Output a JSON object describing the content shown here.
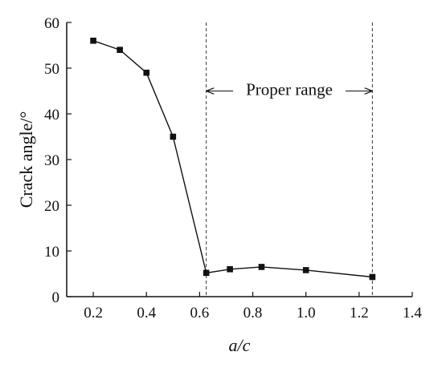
{
  "chart_data": {
    "type": "line",
    "xlabel": "a/c",
    "ylabel": "Crack angle/°",
    "xlim": [
      0.1,
      1.4
    ],
    "ylim": [
      0,
      60
    ],
    "x_ticks": [
      "0.2",
      "0.4",
      "0.6",
      "0.8",
      "1.0",
      "1.2",
      "1.4"
    ],
    "y_ticks": [
      "0",
      "10",
      "20",
      "30",
      "40",
      "50",
      "60"
    ],
    "grid": false,
    "series": [
      {
        "x": [
          0.2,
          0.3,
          0.4,
          0.5,
          0.625,
          0.714,
          0.833,
          1.0,
          1.25
        ],
        "y": [
          56,
          54,
          49,
          35,
          5.2,
          6,
          6.5,
          5.8,
          4.3
        ]
      }
    ],
    "annotation": {
      "text": "Proper range",
      "x_start": 0.625,
      "x_end": 1.25,
      "y": 45
    }
  }
}
